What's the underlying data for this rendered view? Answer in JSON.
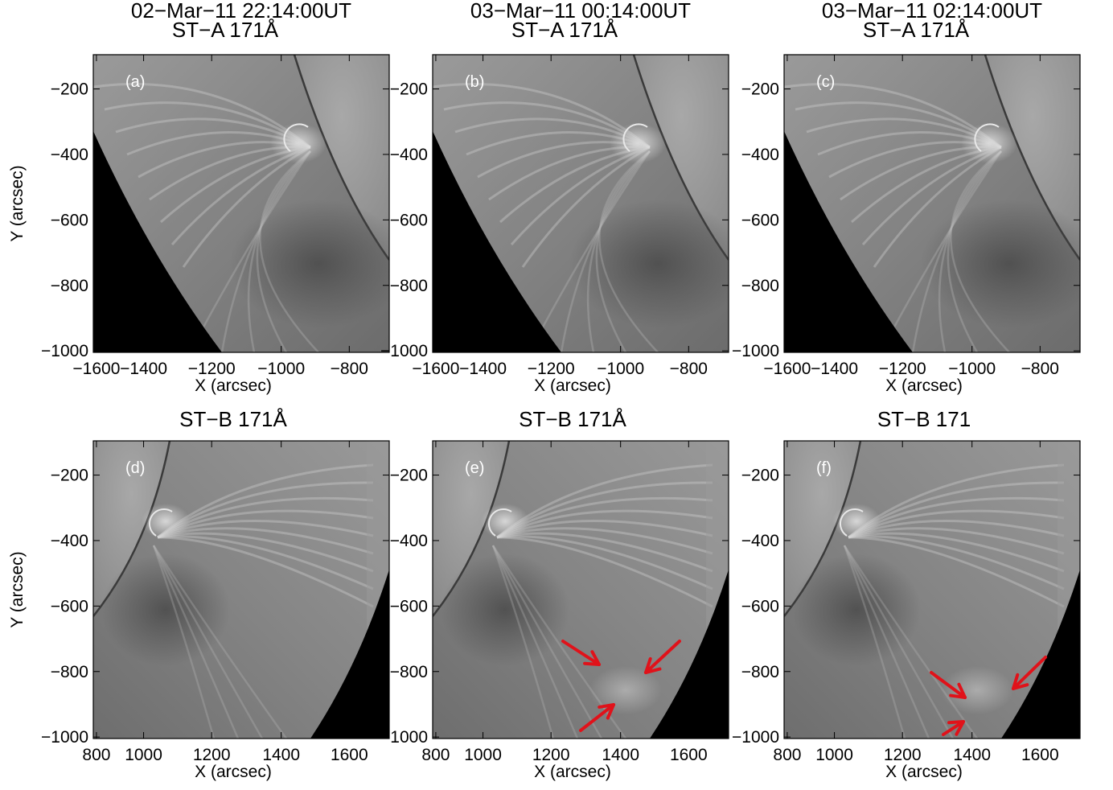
{
  "panels": [
    {
      "id": "a",
      "label": "(a)",
      "title1": "02−Mar−11 22:14:00UT",
      "title2": "ST−A 171Å",
      "view": "A",
      "arrows": false
    },
    {
      "id": "b",
      "label": "(b)",
      "title1": "03−Mar−11 00:14:00UT",
      "title2": "ST−A 171Å",
      "view": "A",
      "arrows": false
    },
    {
      "id": "c",
      "label": "(c)",
      "title1": "03−Mar−11 02:14:00UT",
      "title2": "ST−A 171Å",
      "view": "A",
      "arrows": false
    },
    {
      "id": "d",
      "label": "(d)",
      "title1": "ST−B 171Å",
      "title2": "",
      "view": "B",
      "arrows": false
    },
    {
      "id": "e",
      "label": "(e)",
      "title1": "ST−B 171Å",
      "title2": "",
      "view": "B",
      "arrows": true
    },
    {
      "id": "f",
      "label": "(f)",
      "title1": "ST−B 171",
      "title2": "",
      "view": "B",
      "arrows": true
    }
  ],
  "axes": {
    "xlabel": "X (arcsec)",
    "ylabel": "Y (arcsec)",
    "x_ticks_A": [
      "−1600",
      "−1400",
      "−1200",
      "−1000",
      "−800"
    ],
    "x_ticks_B": [
      "800",
      "1000",
      "1200",
      "1400",
      "1600"
    ],
    "y_ticks": [
      "−200",
      "−400",
      "−600",
      "−800",
      "−1000"
    ]
  },
  "colors": {
    "arrow": "#e0121a",
    "sky": "#000000"
  }
}
